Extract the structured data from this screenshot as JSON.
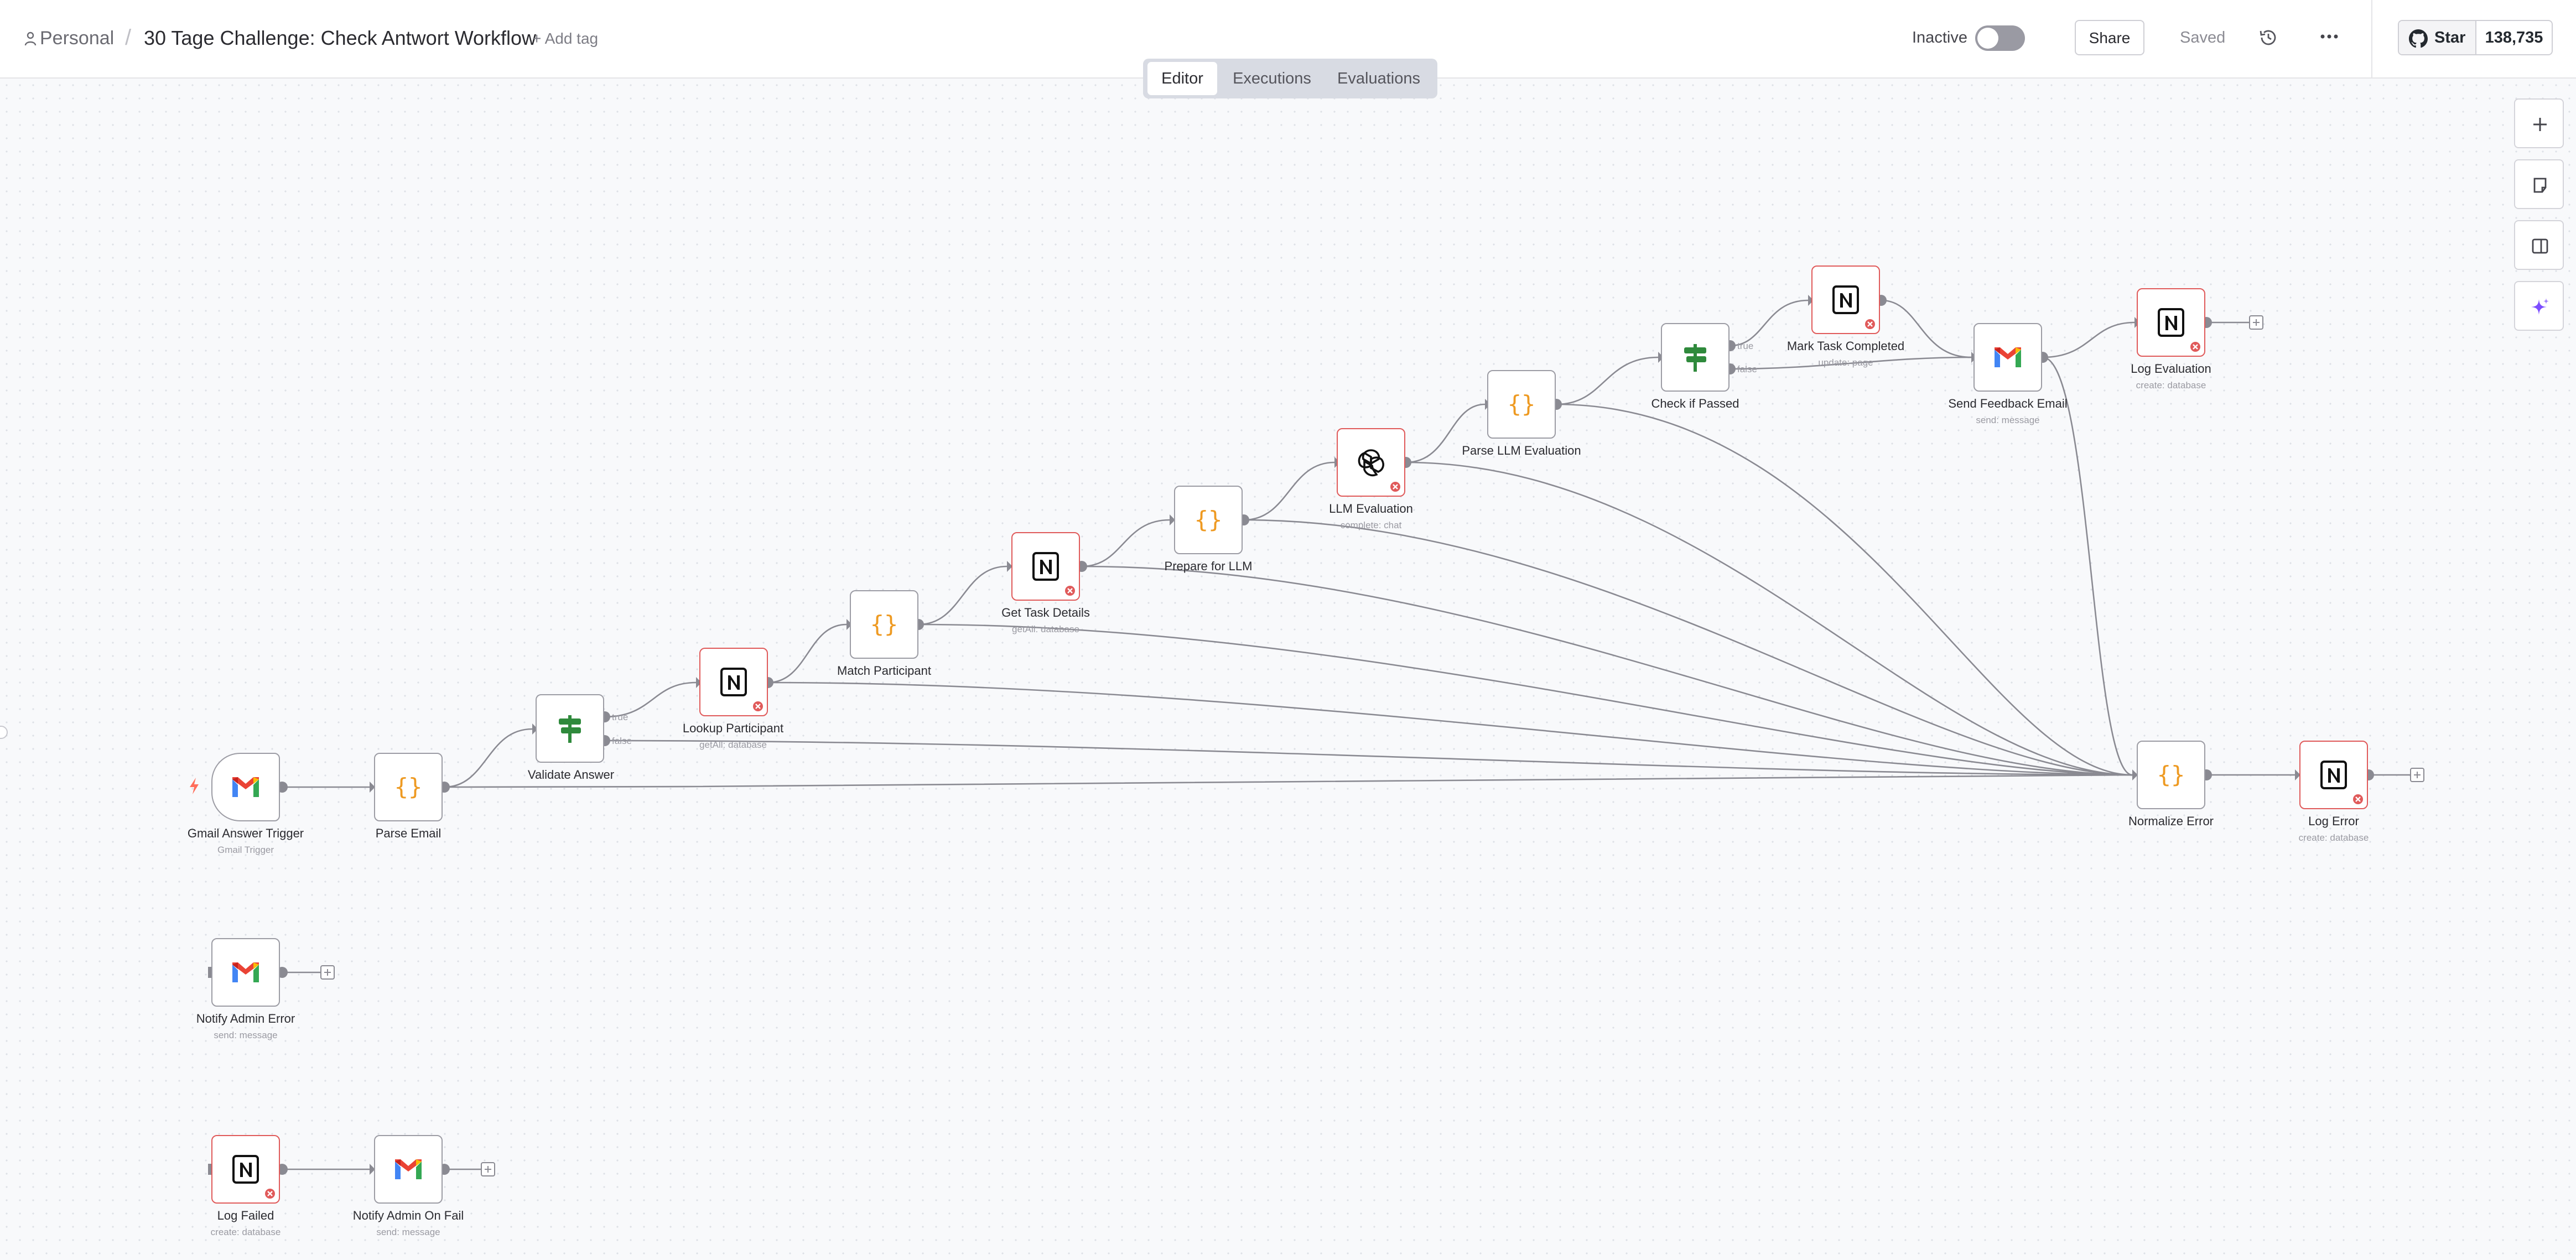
{
  "breadcrumb": {
    "owner": "Personal",
    "separator": "/",
    "workflow_name": "30 Tage Challenge: Check Antwort Workflow",
    "add_tag": "+ Add tag"
  },
  "header": {
    "status_label": "Inactive",
    "active": false,
    "share": "Share",
    "saved": "Saved",
    "github_star": "Star",
    "github_count": "138,735"
  },
  "tabs": [
    {
      "label": "Editor",
      "active": true
    },
    {
      "label": "Executions",
      "active": false
    },
    {
      "label": "Evaluations",
      "active": false
    }
  ],
  "toolbar": {
    "zoom_in_icon": "plus-icon",
    "sticky_icon": "note-icon",
    "panel_icon": "sidebar-panel-icon",
    "ai_icon": "sparkle-icon"
  },
  "colors": {
    "error": "#e05a5a",
    "code": "#ee9a22",
    "filter": "#2f8a3c",
    "accent": "#ff6d5a"
  },
  "nodes": [
    {
      "id": "gmail_trigger",
      "label": "Gmail Answer Trigger",
      "sub": "Gmail Trigger",
      "icon": "gmail-icon"
    },
    {
      "id": "parse_email",
      "label": "Parse Email",
      "sub": "",
      "icon": "code-icon"
    },
    {
      "id": "validate_answer",
      "label": "Validate Answer",
      "sub": "",
      "icon": "filter-icon"
    },
    {
      "id": "lookup_participant",
      "label": "Lookup Participant",
      "sub": "getAll: database",
      "icon": "notion-icon"
    },
    {
      "id": "match_participant",
      "label": "Match Participant",
      "sub": "",
      "icon": "code-icon"
    },
    {
      "id": "get_task_details",
      "label": "Get Task Details",
      "sub": "getAll: database",
      "icon": "notion-icon"
    },
    {
      "id": "prepare_llm",
      "label": "Prepare for LLM",
      "sub": "",
      "icon": "code-icon"
    },
    {
      "id": "llm_evaluation",
      "label": "LLM Evaluation",
      "sub": "complete: chat",
      "icon": "openai-icon"
    },
    {
      "id": "parse_llm_evaluation",
      "label": "Parse LLM Evaluation",
      "sub": "",
      "icon": "code-icon"
    },
    {
      "id": "check_passed",
      "label": "Check if Passed",
      "sub": "",
      "icon": "filter-icon"
    },
    {
      "id": "mark_task_completed",
      "label": "Mark Task Completed",
      "sub": "update: page",
      "icon": "notion-icon"
    },
    {
      "id": "send_feedback",
      "label": "Send Feedback Email",
      "sub": "send: message",
      "icon": "gmail-icon"
    },
    {
      "id": "log_evaluation",
      "label": "Log Evaluation",
      "sub": "create: database",
      "icon": "notion-icon"
    },
    {
      "id": "normalize_error",
      "label": "Normalize Error",
      "sub": "",
      "icon": "code-icon"
    },
    {
      "id": "log_error",
      "label": "Log Error",
      "sub": "create: database",
      "icon": "notion-icon"
    },
    {
      "id": "notify_admin_error",
      "label": "Notify Admin Error",
      "sub": "send: message",
      "icon": "gmail-icon"
    },
    {
      "id": "log_failed",
      "label": "Log Failed",
      "sub": "create: database",
      "icon": "notion-icon"
    },
    {
      "id": "notify_admin_fail",
      "label": "Notify Admin On Fail",
      "sub": "send: message",
      "icon": "gmail-icon"
    }
  ],
  "branch_labels": {
    "true": "true",
    "false": "false"
  }
}
